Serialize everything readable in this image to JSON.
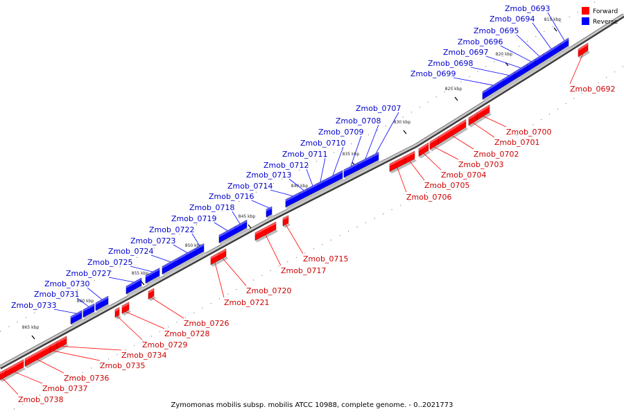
{
  "caption": "Zymomonas mobilis subsp. mobilis ATCC 10988, complete genome. - 0..2021773",
  "legend": [
    {
      "label": "Forward",
      "color": "#ff0000"
    },
    {
      "label": "Reverse",
      "color": "#0000ff"
    }
  ],
  "colors": {
    "forward": "#ff0000",
    "reverse": "#0000ff",
    "backbone": "#888888"
  },
  "kbp_marks": [
    "815 kbp",
    "820 kbp",
    "825 kbp",
    "830 kbp",
    "835 kbp",
    "840 kbp",
    "845 kbp",
    "850 kbp",
    "855 kbp",
    "860 kbp",
    "865 kbp"
  ],
  "genes": [
    {
      "id": "Zmob_0692",
      "strand": "forward"
    },
    {
      "id": "Zmob_0693",
      "strand": "reverse"
    },
    {
      "id": "Zmob_0694",
      "strand": "reverse"
    },
    {
      "id": "Zmob_0695",
      "strand": "reverse"
    },
    {
      "id": "Zmob_0696",
      "strand": "reverse"
    },
    {
      "id": "Zmob_0697",
      "strand": "reverse"
    },
    {
      "id": "Zmob_0698",
      "strand": "reverse"
    },
    {
      "id": "Zmob_0699",
      "strand": "reverse"
    },
    {
      "id": "Zmob_0700",
      "strand": "forward"
    },
    {
      "id": "Zmob_0701",
      "strand": "forward"
    },
    {
      "id": "Zmob_0702",
      "strand": "forward"
    },
    {
      "id": "Zmob_0703",
      "strand": "forward"
    },
    {
      "id": "Zmob_0704",
      "strand": "forward"
    },
    {
      "id": "Zmob_0705",
      "strand": "forward"
    },
    {
      "id": "Zmob_0706",
      "strand": "forward"
    },
    {
      "id": "Zmob_0707",
      "strand": "reverse"
    },
    {
      "id": "Zmob_0708",
      "strand": "reverse"
    },
    {
      "id": "Zmob_0709",
      "strand": "reverse"
    },
    {
      "id": "Zmob_0710",
      "strand": "reverse"
    },
    {
      "id": "Zmob_0711",
      "strand": "reverse"
    },
    {
      "id": "Zmob_0712",
      "strand": "reverse"
    },
    {
      "id": "Zmob_0713",
      "strand": "reverse"
    },
    {
      "id": "Zmob_0714",
      "strand": "reverse"
    },
    {
      "id": "Zmob_0715",
      "strand": "forward"
    },
    {
      "id": "Zmob_0716",
      "strand": "reverse"
    },
    {
      "id": "Zmob_0717",
      "strand": "forward"
    },
    {
      "id": "Zmob_0718",
      "strand": "reverse"
    },
    {
      "id": "Zmob_0719",
      "strand": "reverse"
    },
    {
      "id": "Zmob_0720",
      "strand": "forward"
    },
    {
      "id": "Zmob_0721",
      "strand": "forward"
    },
    {
      "id": "Zmob_0722",
      "strand": "reverse"
    },
    {
      "id": "Zmob_0723",
      "strand": "reverse"
    },
    {
      "id": "Zmob_0724",
      "strand": "reverse"
    },
    {
      "id": "Zmob_0725",
      "strand": "reverse"
    },
    {
      "id": "Zmob_0726",
      "strand": "forward"
    },
    {
      "id": "Zmob_0727",
      "strand": "reverse"
    },
    {
      "id": "Zmob_0728",
      "strand": "forward"
    },
    {
      "id": "Zmob_0729",
      "strand": "forward"
    },
    {
      "id": "Zmob_0730",
      "strand": "reverse"
    },
    {
      "id": "Zmob_0731",
      "strand": "reverse"
    },
    {
      "id": "Zmob_0733",
      "strand": "reverse"
    },
    {
      "id": "Zmob_0734",
      "strand": "forward"
    },
    {
      "id": "Zmob_0735",
      "strand": "forward"
    },
    {
      "id": "Zmob_0736",
      "strand": "forward"
    },
    {
      "id": "Zmob_0737",
      "strand": "forward"
    },
    {
      "id": "Zmob_0738",
      "strand": "forward"
    }
  ]
}
